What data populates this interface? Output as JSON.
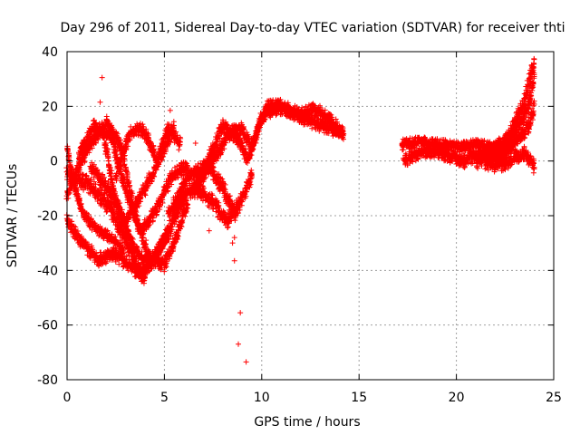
{
  "chart_data": {
    "type": "scatter",
    "title": "Day 296 of 2011, Sidereal Day-to-day VTEC variation (SDTVAR) for receiver thti",
    "xlabel": "GPS time / hours",
    "ylabel": "SDTVAR / TECUs",
    "xlim": [
      0,
      25
    ],
    "ylim": [
      -80,
      40
    ],
    "x_ticks": [
      0,
      5,
      10,
      15,
      20,
      25
    ],
    "y_ticks": [
      -80,
      -60,
      -40,
      -20,
      0,
      20,
      40
    ],
    "x_tick_labels": [
      "0",
      "5",
      "10",
      "15",
      "20",
      "25"
    ],
    "y_tick_labels": [
      "-80",
      "-60",
      "-40",
      "-20",
      "0",
      "20",
      "40"
    ],
    "grid": true,
    "marker": "+",
    "color": "#ff0000",
    "series": [
      {
        "name": "SDTVAR",
        "outliers": [
          {
            "x": 1.8,
            "y": 30.5
          },
          {
            "x": 1.7,
            "y": 21.5
          },
          {
            "x": 5.3,
            "y": 18.5
          },
          {
            "x": 8.6,
            "y": -36.5
          },
          {
            "x": 8.9,
            "y": -55.5
          },
          {
            "x": 8.8,
            "y": -67
          },
          {
            "x": 9.2,
            "y": -73.5
          },
          {
            "x": 8.5,
            "y": -30
          },
          {
            "x": 8.6,
            "y": -28
          },
          {
            "x": 7.3,
            "y": -25.5
          },
          {
            "x": 5.8,
            "y": 6
          },
          {
            "x": 6.6,
            "y": 6.5
          }
        ],
        "bands": [
          {
            "x": [
              0.0,
              1.0,
              2.0,
              3.0,
              3.8,
              5.0,
              6.0
            ],
            "y": [
              -5,
              -8,
              -15,
              -28,
              -42,
              -30,
              -12
            ],
            "spread": 3
          },
          {
            "x": [
              0.0,
              0.8,
              1.6,
              2.4,
              3.2,
              4.0
            ],
            "y": [
              -22,
              -30,
              -36,
              -34,
              -38,
              -43
            ],
            "spread": 2.5
          },
          {
            "x": [
              0.0,
              1.0,
              1.8,
              2.6,
              3.5,
              4.3,
              5.2
            ],
            "y": [
              -12,
              4,
              12,
              -18,
              -33,
              -38,
              -25
            ],
            "spread": 2.5
          },
          {
            "x": [
              0.6,
              1.4,
              2.2,
              3.0,
              3.8,
              4.6,
              5.4,
              6.2
            ],
            "y": [
              2,
              13,
              10,
              -10,
              -26,
              -18,
              -5,
              -2
            ],
            "spread": 2.5
          },
          {
            "x": [
              2.0,
              2.8,
              3.5,
              4.2,
              5.0,
              5.6,
              6.2
            ],
            "y": [
              15,
              5,
              -20,
              -35,
              -38,
              -28,
              -15
            ],
            "spread": 2.5
          },
          {
            "x": [
              2.5,
              3.2,
              3.9,
              4.6,
              5.2,
              5.8
            ],
            "y": [
              -5,
              10,
              12,
              0,
              12,
              6
            ],
            "spread": 2.5
          },
          {
            "x": [
              1.2,
              2.1,
              3.0,
              4.0,
              5.0,
              5.5
            ],
            "y": [
              -2,
              -10,
              -22,
              -10,
              4,
              12
            ],
            "spread": 2.5
          },
          {
            "x": [
              0.0,
              0.4,
              0.9,
              1.5,
              2.2,
              2.9
            ],
            "y": [
              5,
              -10,
              -20,
              -25,
              -28,
              -32
            ],
            "spread": 2
          },
          {
            "x": [
              5.5,
              6.5,
              7.5,
              8.3,
              9.0,
              9.5,
              10.0,
              10.5,
              11.2,
              12.0,
              13.0,
              14.2
            ],
            "y": [
              -18,
              -10,
              0,
              10,
              12,
              5,
              16,
              19,
              19,
              16,
              13,
              10
            ],
            "spread": 2.5
          },
          {
            "x": [
              6.5,
              7.2,
              8.0,
              8.8,
              9.3,
              9.8,
              10.3,
              11.0,
              12.0,
              12.8,
              13.5,
              14.2
            ],
            "y": [
              -12,
              0,
              13,
              8,
              0,
              12,
              20,
              20,
              17,
              19,
              15,
              10
            ],
            "spread": 2.5
          },
          {
            "x": [
              5.2,
              6.3,
              7.3,
              8.0,
              8.7
            ],
            "y": [
              -20,
              -5,
              -2,
              -10,
              -20
            ],
            "spread": 3
          },
          {
            "x": [
              6.6,
              7.5,
              8.2,
              8.9,
              9.5
            ],
            "y": [
              -10,
              -15,
              -22,
              -15,
              -5
            ],
            "spread": 3
          },
          {
            "x": [
              17.2,
              18.2,
              19.2,
              20.2,
              21.0,
              21.8,
              22.6
            ],
            "y": [
              6,
              7,
              6,
              5,
              6,
              5,
              7
            ],
            "spread": 2
          },
          {
            "x": [
              17.3,
              18.0,
              18.8,
              19.6,
              20.4,
              21.2,
              22.0,
              22.8,
              23.5,
              24.0
            ],
            "y": [
              0,
              3,
              4,
              2,
              0,
              3,
              -2,
              0,
              3,
              -2
            ],
            "spread": 2.5
          },
          {
            "x": [
              21.0,
              21.8,
              22.5,
              23.0,
              23.5,
              24.0
            ],
            "y": [
              0,
              3,
              7,
              13,
              22,
              37
            ],
            "spread": 3
          },
          {
            "x": [
              21.5,
              22.2,
              22.8,
              23.3,
              23.8,
              24.0
            ],
            "y": [
              -1,
              2,
              5,
              9,
              14,
              20
            ],
            "spread": 3
          },
          {
            "x": [
              22.0,
              22.6,
              23.1,
              23.6,
              24.0
            ],
            "y": [
              0,
              4,
              12,
              18,
              30
            ],
            "spread": 3
          }
        ]
      }
    ]
  }
}
